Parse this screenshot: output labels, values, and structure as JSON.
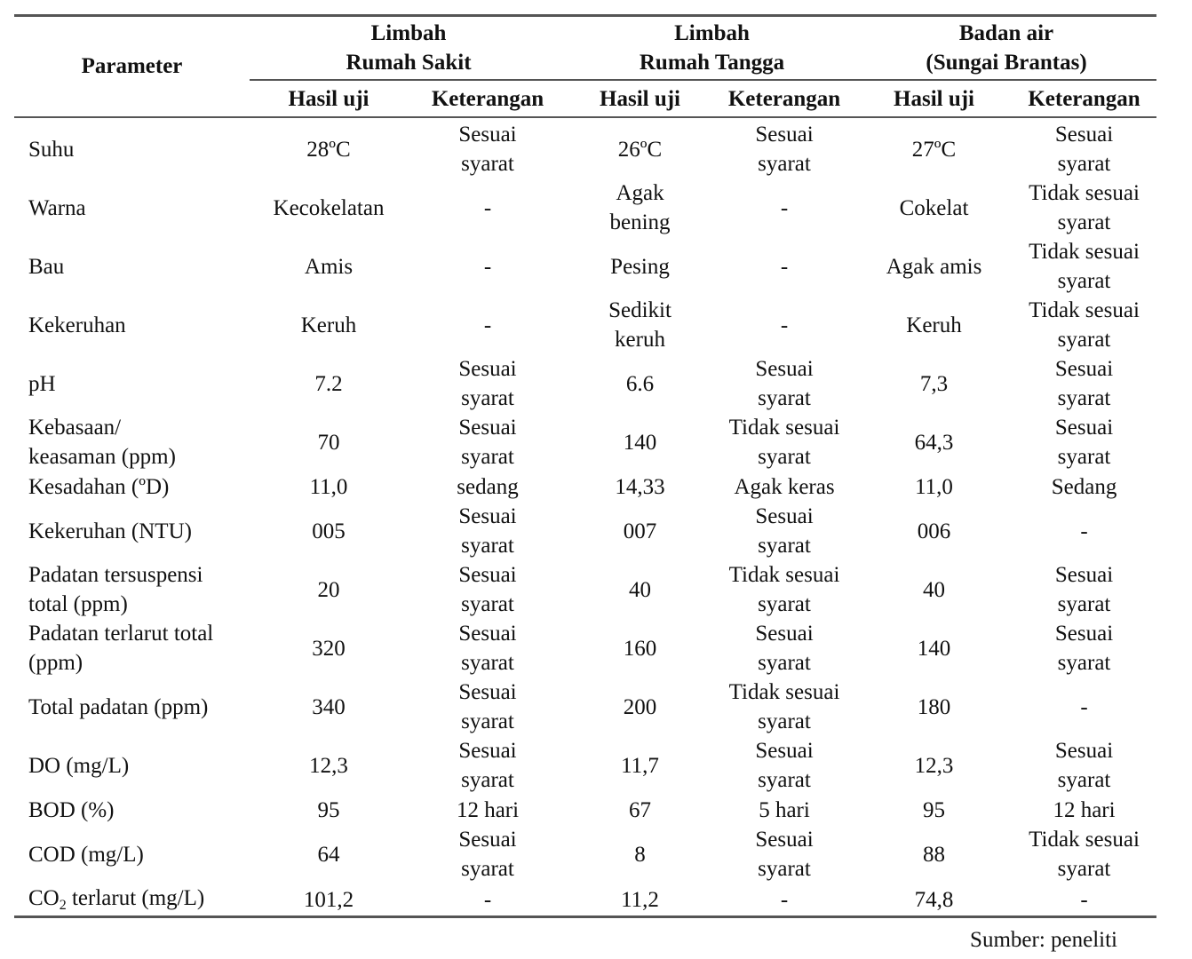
{
  "table": {
    "header": {
      "parameter": "Parameter",
      "groups": [
        {
          "line1": "Limbah",
          "line2": "Rumah Sakit"
        },
        {
          "line1": "Limbah",
          "line2": "Rumah Tangga"
        },
        {
          "line1": "Badan air",
          "line2": "(Sungai Brantas)"
        }
      ],
      "sub_hasil": "Hasil uji",
      "sub_keterangan": "Keterangan"
    },
    "rows": [
      {
        "param": "Suhu",
        "rs_hasil": "28ºC",
        "rs_ket": "Sesuai syarat",
        "rt_hasil": "26ºC",
        "rt_ket": "Sesuai syarat",
        "sb_hasil": "27ºC",
        "sb_ket": "Sesuai syarat"
      },
      {
        "param": "Warna",
        "rs_hasil": "Kecokelatan",
        "rs_ket": "-",
        "rt_hasil": "Agak bening",
        "rt_ket": "-",
        "sb_hasil": "Cokelat",
        "sb_ket": "Tidak sesuai syarat"
      },
      {
        "param": "Bau",
        "rs_hasil": "Amis",
        "rs_ket": "-",
        "rt_hasil": "Pesing",
        "rt_ket": "-",
        "sb_hasil": "Agak amis",
        "sb_ket": "Tidak sesuai syarat"
      },
      {
        "param": "Kekeruhan",
        "rs_hasil": "Keruh",
        "rs_ket": "-",
        "rt_hasil": "Sedikit keruh",
        "rt_ket": "-",
        "sb_hasil": "Keruh",
        "sb_ket": "Tidak sesuai syarat"
      },
      {
        "param": "pH",
        "rs_hasil": "7.2",
        "rs_ket": "Sesuai syarat",
        "rt_hasil": "6.6",
        "rt_ket": "Sesuai syarat",
        "sb_hasil": "7,3",
        "sb_ket": "Sesuai syarat"
      },
      {
        "param": "Kebasaan/ keasaman (ppm)",
        "rs_hasil": "70",
        "rs_ket": "Sesuai syarat",
        "rt_hasil": "140",
        "rt_ket": "Tidak sesuai syarat",
        "sb_hasil": "64,3",
        "sb_ket": "Sesuai syarat"
      },
      {
        "param": "Kesadahan (ºD)",
        "rs_hasil": "11,0",
        "rs_ket": "sedang",
        "rt_hasil": "14,33",
        "rt_ket": "Agak keras",
        "sb_hasil": "11,0",
        "sb_ket": "Sedang"
      },
      {
        "param": "Kekeruhan (NTU)",
        "rs_hasil": "005",
        "rs_ket": "Sesuai syarat",
        "rt_hasil": "007",
        "rt_ket": "Sesuai syarat",
        "sb_hasil": "006",
        "sb_ket": "-"
      },
      {
        "param": "Padatan tersuspensi total (ppm)",
        "rs_hasil": "20",
        "rs_ket": "Sesuai syarat",
        "rt_hasil": "40",
        "rt_ket": "Tidak sesuai syarat",
        "sb_hasil": "40",
        "sb_ket": "Sesuai syarat"
      },
      {
        "param": "Padatan terlarut total (ppm)",
        "rs_hasil": "320",
        "rs_ket": "Sesuai syarat",
        "rt_hasil": "160",
        "rt_ket": "Sesuai syarat",
        "sb_hasil": "140",
        "sb_ket": "Sesuai syarat"
      },
      {
        "param": "Total padatan (ppm)",
        "rs_hasil": "340",
        "rs_ket": "Sesuai syarat",
        "rt_hasil": "200",
        "rt_ket": "Tidak sesuai syarat",
        "sb_hasil": "180",
        "sb_ket": "-"
      },
      {
        "param": "DO (mg/L)",
        "rs_hasil": "12,3",
        "rs_ket": "Sesuai syarat",
        "rt_hasil": "11,7",
        "rt_ket": "Sesuai syarat",
        "sb_hasil": "12,3",
        "sb_ket": "Sesuai syarat"
      },
      {
        "param": "BOD (%)",
        "rs_hasil": "95",
        "rs_ket": "12 hari",
        "rt_hasil": "67",
        "rt_ket": "5 hari",
        "sb_hasil": "95",
        "sb_ket": "12 hari"
      },
      {
        "param": "COD (mg/L)",
        "rs_hasil": "64",
        "rs_ket": "Sesuai syarat",
        "rt_hasil": "8",
        "rt_ket": "Sesuai syarat",
        "sb_hasil": "88",
        "sb_ket": "Tidak sesuai syarat"
      },
      {
        "param_prefix": "CO",
        "param_sub": "2",
        "param_suffix": " terlarut (mg/L)",
        "rs_hasil": "101,2",
        "rs_ket": "-",
        "rt_hasil": "11,2",
        "rt_ket": "-",
        "sb_hasil": "74,8",
        "sb_ket": "-"
      }
    ]
  },
  "source": "Sumber: peneliti"
}
